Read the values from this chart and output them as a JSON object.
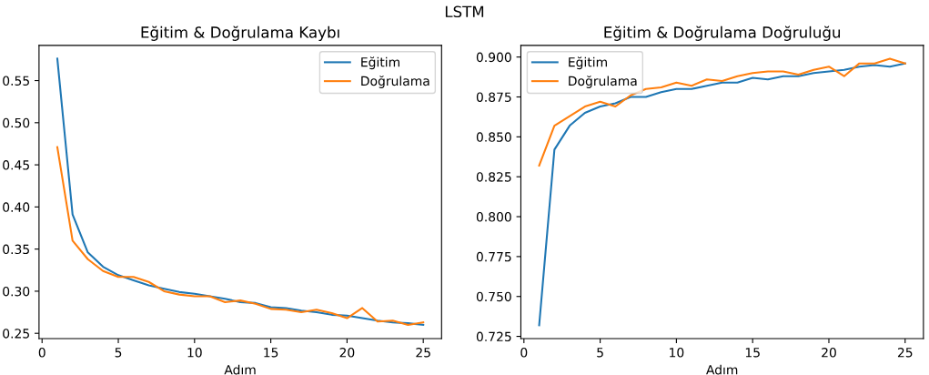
{
  "chart_data": [
    {
      "type": "line",
      "title": "Eğitim & Doğrulama Kaybı",
      "xlabel": "Adım",
      "annotations": [
        "LSTM"
      ],
      "legend": "top right",
      "grid": false,
      "x": [
        1,
        2,
        3,
        4,
        5,
        6,
        7,
        8,
        9,
        10,
        11,
        12,
        13,
        14,
        15,
        16,
        17,
        18,
        19,
        20,
        21,
        22,
        23,
        24,
        25
      ],
      "series": [
        {
          "name": "Eğitim",
          "color": "#1f77b4",
          "values": [
            0.576,
            0.391,
            0.346,
            0.329,
            0.319,
            0.313,
            0.307,
            0.303,
            0.299,
            0.297,
            0.294,
            0.291,
            0.287,
            0.286,
            0.281,
            0.28,
            0.277,
            0.275,
            0.272,
            0.271,
            0.268,
            0.265,
            0.263,
            0.262,
            0.26
          ]
        },
        {
          "name": "Doğrulama",
          "color": "#ff7f0e",
          "values": [
            0.471,
            0.36,
            0.338,
            0.324,
            0.317,
            0.317,
            0.311,
            0.3,
            0.296,
            0.294,
            0.294,
            0.287,
            0.289,
            0.285,
            0.279,
            0.278,
            0.275,
            0.278,
            0.274,
            0.268,
            0.28,
            0.264,
            0.265,
            0.26,
            0.263
          ]
        }
      ],
      "xlim": [
        -0.2,
        26.2
      ],
      "xticks": [
        0,
        5,
        10,
        15,
        20,
        25
      ],
      "ylim": [
        0.2437,
        0.5918
      ],
      "yticks": [
        {
          "value": 0.25,
          "label": "0.25"
        },
        {
          "value": 0.3,
          "label": "0.30"
        },
        {
          "value": 0.35,
          "label": "0.35"
        },
        {
          "value": 0.4,
          "label": "0.40"
        },
        {
          "value": 0.45,
          "label": "0.45"
        },
        {
          "value": 0.5,
          "label": "0.50"
        },
        {
          "value": 0.55,
          "label": "0.55"
        }
      ]
    },
    {
      "type": "line",
      "title": "Eğitim & Doğrulama Doğruluğu",
      "xlabel": "Adım",
      "legend": "top left",
      "grid": false,
      "x": [
        1,
        2,
        3,
        4,
        5,
        6,
        7,
        8,
        9,
        10,
        11,
        12,
        13,
        14,
        15,
        16,
        17,
        18,
        19,
        20,
        21,
        22,
        23,
        24,
        25
      ],
      "series": [
        {
          "name": "Eğitim",
          "color": "#1f77b4",
          "values": [
            0.732,
            0.842,
            0.857,
            0.865,
            0.869,
            0.871,
            0.875,
            0.875,
            0.878,
            0.88,
            0.88,
            0.882,
            0.884,
            0.884,
            0.887,
            0.886,
            0.888,
            0.888,
            0.89,
            0.891,
            0.892,
            0.894,
            0.895,
            0.894,
            0.896
          ]
        },
        {
          "name": "Doğrulama",
          "color": "#ff7f0e",
          "values": [
            0.832,
            0.857,
            0.863,
            0.869,
            0.872,
            0.869,
            0.876,
            0.88,
            0.881,
            0.884,
            0.882,
            0.886,
            0.885,
            0.888,
            0.89,
            0.891,
            0.891,
            0.889,
            0.892,
            0.894,
            0.888,
            0.896,
            0.896,
            0.899,
            0.896
          ]
        }
      ],
      "xlim": [
        -0.2,
        26.2
      ],
      "xticks": [
        0,
        5,
        10,
        15,
        20,
        25
      ],
      "ylim": [
        0.7236,
        0.9073
      ],
      "yticks": [
        {
          "value": 0.725,
          "label": "0.725"
        },
        {
          "value": 0.75,
          "label": "0.750"
        },
        {
          "value": 0.775,
          "label": "0.775"
        },
        {
          "value": 0.8,
          "label": "0.800"
        },
        {
          "value": 0.825,
          "label": "0.825"
        },
        {
          "value": 0.85,
          "label": "0.850"
        },
        {
          "value": 0.875,
          "label": "0.875"
        },
        {
          "value": 0.9,
          "label": "0.900"
        }
      ]
    }
  ]
}
